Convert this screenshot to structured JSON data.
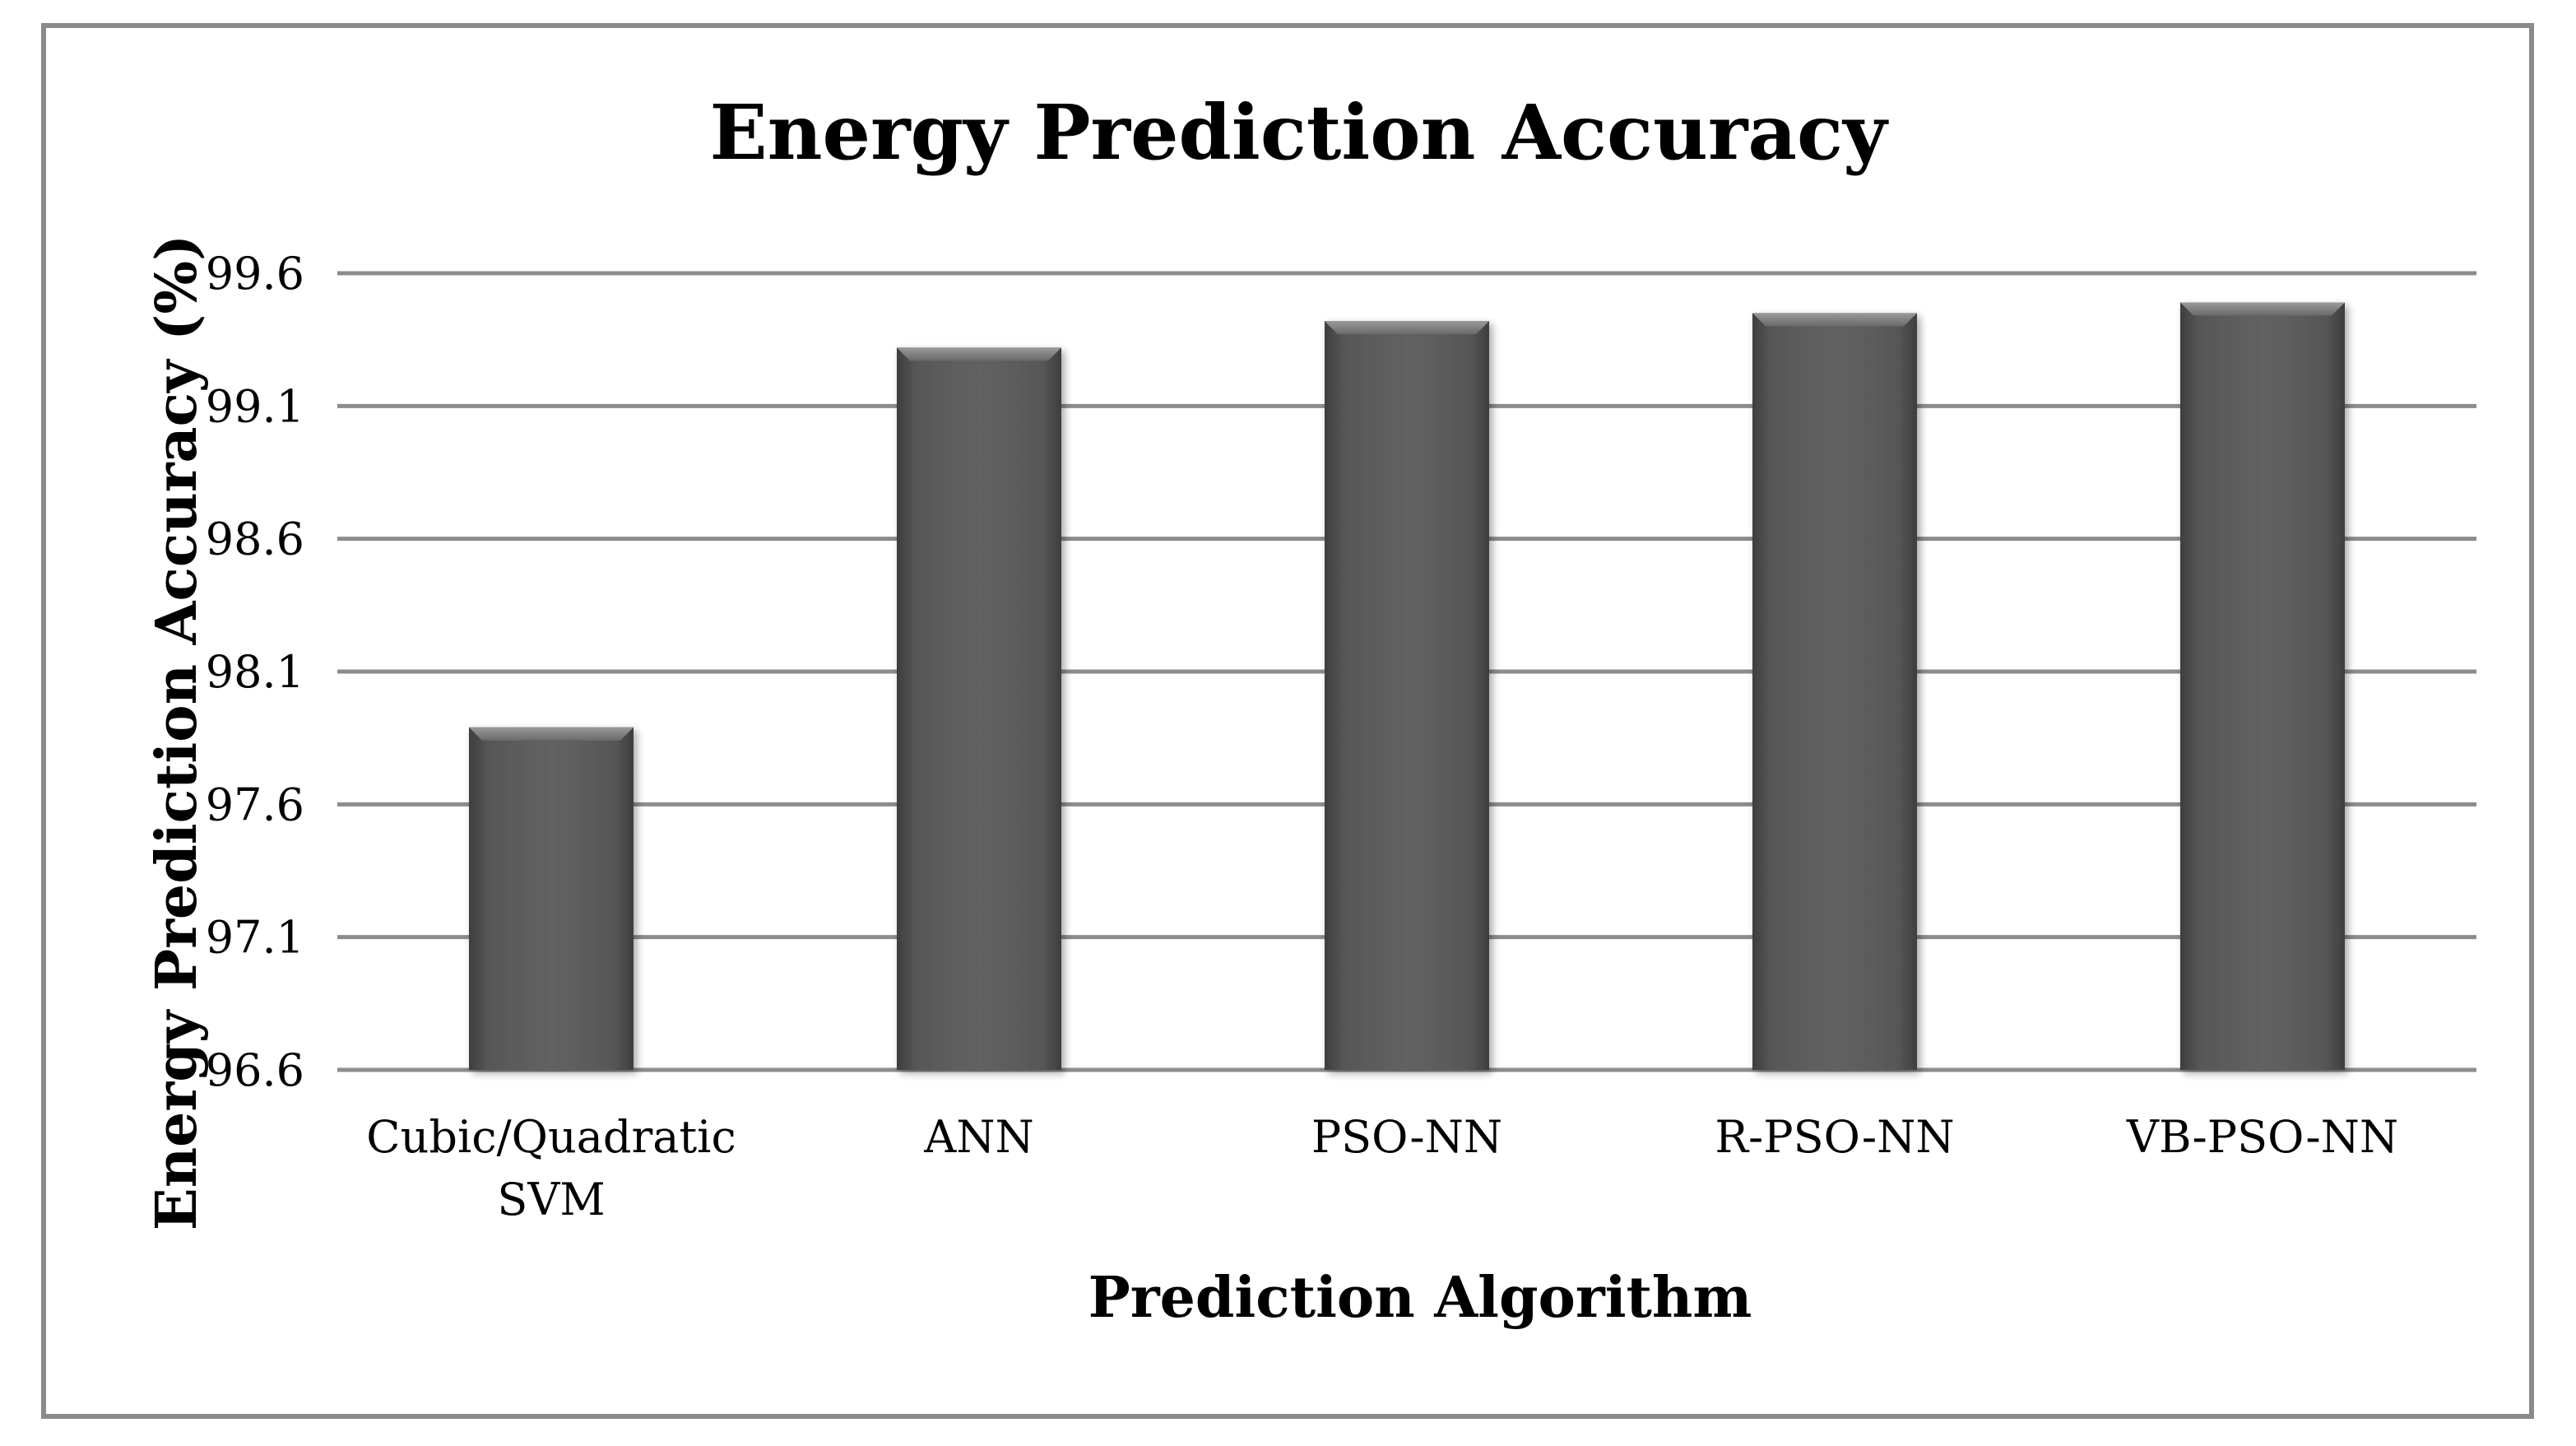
{
  "chart_data": {
    "type": "bar",
    "title": "Energy Prediction Accuracy",
    "xlabel": "Prediction Algorithm",
    "ylabel": "Energy Prediction Accuracy (%)",
    "categories": [
      [
        "Cubic/Quadratic",
        "SVM"
      ],
      [
        "ANN"
      ],
      [
        "PSO-NN"
      ],
      [
        "R-PSO-NN"
      ],
      [
        "VB-PSO-NN"
      ]
    ],
    "values": [
      97.89,
      99.32,
      99.42,
      99.45,
      99.49
    ],
    "ylim": [
      96.6,
      99.6
    ],
    "yticks": [
      "96.6",
      "97.1",
      "97.6",
      "98.1",
      "98.6",
      "99.1",
      "99.6"
    ],
    "grid": true,
    "legend": "none",
    "bar_color": "#5c5c5c",
    "grid_color": "#8c8c8c"
  }
}
